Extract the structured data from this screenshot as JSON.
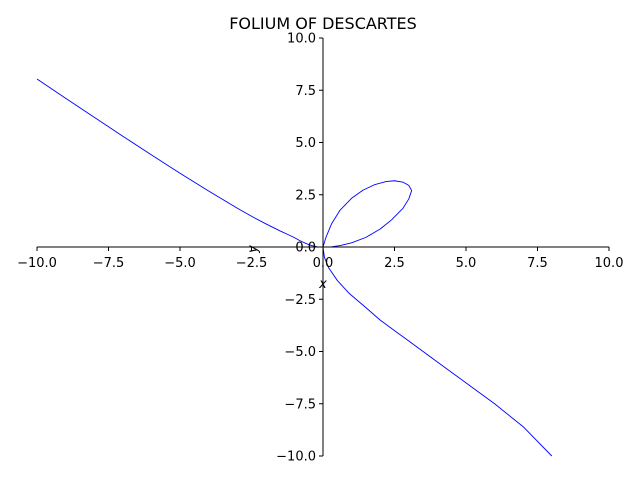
{
  "chart_data": {
    "type": "line",
    "title": "FOLIUM OF DESCARTES",
    "xlabel": "x",
    "ylabel": "y",
    "xlim": [
      -10,
      10
    ],
    "ylim": [
      -10,
      10
    ],
    "x_ticks": [
      "−10.0",
      "−7.5",
      "−5.0",
      "−2.5",
      "0.0",
      "2.5",
      "5.0",
      "7.5",
      "10.0"
    ],
    "y_ticks": [
      "10.0",
      "7.5",
      "5.0",
      "2.5",
      "0.0",
      "−2.5",
      "−5.0",
      "−7.5",
      "−10.0"
    ],
    "grid": false,
    "spines": "centered at origin",
    "series": [
      {
        "color": "#0000ff",
        "points": [
          [
            -10,
            8.04
          ],
          [
            -9,
            7.12
          ],
          [
            -8,
            6.21
          ],
          [
            -7,
            5.3
          ],
          [
            -6,
            4.41
          ],
          [
            -5,
            3.53
          ],
          [
            -4,
            2.68
          ],
          [
            -3,
            1.86
          ],
          [
            -2.5,
            1.47
          ],
          [
            -2,
            1.11
          ],
          [
            -1.5,
            0.77
          ],
          [
            -1.2,
            0.58
          ],
          [
            -1,
            0.45
          ],
          [
            -0.8,
            0.3
          ],
          [
            -0.6,
            0.17
          ],
          [
            -0.4,
            0.07
          ],
          [
            -0.2,
            0.01
          ],
          [
            0,
            0
          ],
          [
            0.3,
            0.01
          ],
          [
            0.6,
            0.07
          ],
          [
            1.0,
            0.2
          ],
          [
            1.5,
            0.46
          ],
          [
            2.0,
            0.86
          ],
          [
            2.4,
            1.3
          ],
          [
            2.8,
            1.86
          ],
          [
            3.0,
            2.3
          ],
          [
            3.1,
            2.7
          ],
          [
            3.0,
            2.95
          ],
          [
            2.8,
            3.1
          ],
          [
            2.5,
            3.17
          ],
          [
            2.2,
            3.13
          ],
          [
            1.8,
            2.98
          ],
          [
            1.4,
            2.72
          ],
          [
            1.0,
            2.33
          ],
          [
            0.6,
            1.77
          ],
          [
            0.3,
            1.11
          ],
          [
            0.1,
            0.45
          ],
          [
            0,
            0
          ],
          [
            0.05,
            -0.5
          ],
          [
            0.2,
            -1.0
          ],
          [
            0.5,
            -1.6
          ],
          [
            0.9,
            -2.2
          ],
          [
            1.5,
            -2.9
          ],
          [
            2.0,
            -3.5
          ],
          [
            2.5,
            -4.0
          ],
          [
            3.0,
            -4.5
          ],
          [
            4.0,
            -5.5
          ],
          [
            5.0,
            -6.5
          ],
          [
            6.0,
            -7.5
          ],
          [
            7.0,
            -8.6
          ],
          [
            8.0,
            -10.0
          ]
        ]
      }
    ]
  }
}
